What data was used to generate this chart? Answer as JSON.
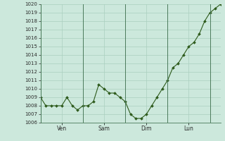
{
  "y_values": [
    1009,
    1008,
    1008,
    1008,
    1008,
    1009,
    1008,
    1007.5,
    1008,
    1008,
    1008.5,
    1010.5,
    1010,
    1009.5,
    1009.5,
    1009,
    1008.5,
    1007,
    1006.5,
    1006.5,
    1007,
    1008,
    1009,
    1010,
    1011,
    1012.5,
    1013,
    1014,
    1015,
    1015.5,
    1016.5,
    1018,
    1019,
    1019.5,
    1020
  ],
  "x_tick_positions": [
    4,
    12,
    20,
    28
  ],
  "x_tick_labels": [
    "Ven",
    "Sam",
    "Dim",
    "Lun"
  ],
  "y_min": 1006,
  "y_max": 1020,
  "line_color": "#2d5a1b",
  "marker_color": "#2d5a1b",
  "bg_color": "#cce8dc",
  "grid_color": "#aacfbf",
  "vline_color": "#4a7a5a",
  "vline_positions": [
    0,
    8,
    16,
    24,
    32
  ],
  "n_points": 35
}
